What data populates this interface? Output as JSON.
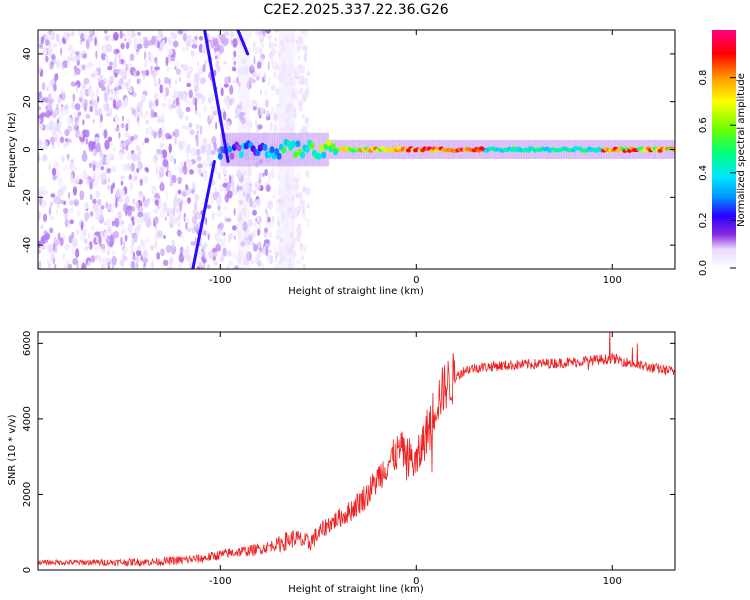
{
  "title": "C2E2.2025.337.22.36.G26",
  "colors": {
    "snr_line": "#ee2222",
    "spectrogram_low": "#d9c6f5",
    "spectrogram_mid": "#6a00d8"
  },
  "chart_data": [
    {
      "type": "heatmap",
      "name": "spectrogram",
      "xlabel": "Height of straight line (km)",
      "ylabel": "Frequency (Hz)",
      "xlim": [
        -193,
        132
      ],
      "ylim": [
        -50,
        50
      ],
      "x_ticks": [
        -100,
        0,
        100
      ],
      "x_tick_labels": [
        "-100",
        "0",
        "100"
      ],
      "y_ticks": [
        -40,
        -20,
        0,
        20,
        40
      ],
      "y_tick_labels": [
        "-40",
        "-20",
        "0",
        "20",
        "40"
      ],
      "colorbar": {
        "label": "Normalized spectral amplitude",
        "range": [
          0,
          1
        ],
        "ticks": [
          0.0,
          0.2,
          0.4,
          0.6,
          0.8
        ],
        "tick_labels": [
          "0.0",
          "0.2",
          "0.4",
          "0.6",
          "0.8"
        ],
        "colormap": [
          "#ffffff",
          "#e6d8ff",
          "#8a2be2",
          "#2a00ff",
          "#0096ff",
          "#00e5ff",
          "#00ff7f",
          "#66ff00",
          "#ffff00",
          "#ff9900",
          "#ff0000",
          "#ff0080"
        ]
      },
      "features": [
        {
          "name": "broadband noise",
          "x_range": [
            -193,
            -55
          ],
          "amplitude": 0.1
        },
        {
          "name": "carrier line",
          "x_range": [
            -100,
            132
          ],
          "frequency": 0,
          "peak_amplitude": 0.95
        },
        {
          "name": "sweep line 1",
          "x_from": -108,
          "x_to": -96,
          "freq_from": 50,
          "freq_to": -5
        },
        {
          "name": "sweep line 2",
          "x_from": -103,
          "x_to": -114,
          "freq_from": -5,
          "freq_to": -50
        },
        {
          "name": "sweep line 3",
          "x_from": -91,
          "x_to": -86,
          "freq_from": 50,
          "freq_to": 40
        }
      ]
    },
    {
      "type": "line",
      "name": "snr",
      "xlabel": "Height of straight line (km)",
      "ylabel": "SNR (10 * v/v)",
      "xlim": [
        -193,
        132
      ],
      "ylim": [
        0,
        6300
      ],
      "x_ticks": [
        -100,
        0,
        100
      ],
      "x_tick_labels": [
        "-100",
        "0",
        "100"
      ],
      "y_ticks": [
        0,
        2000,
        4000,
        6000
      ],
      "y_tick_labels": [
        "0",
        "2000",
        "4000",
        "6000"
      ],
      "series": [
        {
          "name": "SNR",
          "x": [
            -193,
            -160,
            -130,
            -110,
            -95,
            -80,
            -70,
            -62,
            -55,
            -45,
            -35,
            -25,
            -15,
            -8,
            0,
            5,
            10,
            15,
            20,
            25,
            30,
            40,
            60,
            80,
            100,
            115,
            132
          ],
          "y": [
            200,
            200,
            220,
            300,
            450,
            550,
            700,
            850,
            700,
            1200,
            1500,
            2000,
            2800,
            3200,
            2800,
            3600,
            4400,
            4900,
            5100,
            5300,
            5350,
            5400,
            5450,
            5500,
            5600,
            5400,
            5250
          ]
        }
      ]
    }
  ]
}
